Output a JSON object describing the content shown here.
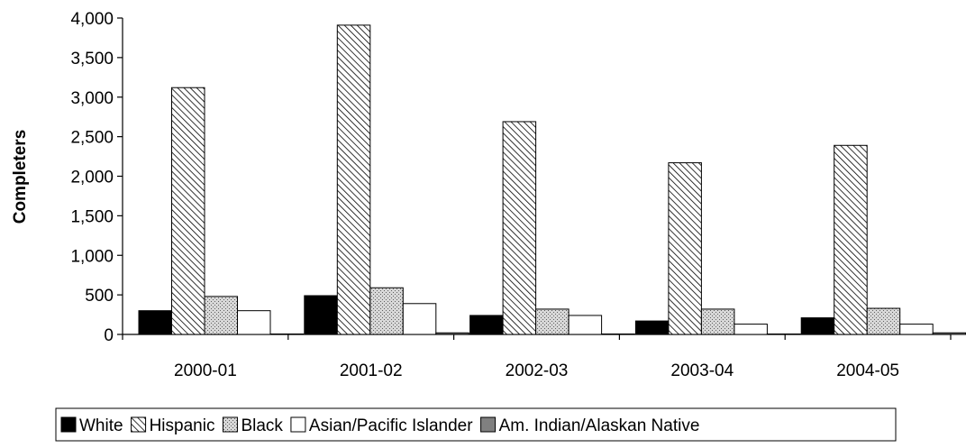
{
  "chart_data": {
    "type": "bar",
    "title": "",
    "xlabel": "",
    "ylabel": "Completers",
    "ylim": [
      0,
      4000
    ],
    "yticks": [
      0,
      500,
      1000,
      1500,
      2000,
      2500,
      3000,
      3500,
      4000
    ],
    "ytick_labels": [
      "0",
      "500",
      "1,000",
      "1,500",
      "2,000",
      "2,500",
      "3,000",
      "3,500",
      "4,000"
    ],
    "categories": [
      "2000-01",
      "2001-02",
      "2002-03",
      "2003-04",
      "2004-05"
    ],
    "grid": false,
    "legend_position": "bottom",
    "series": [
      {
        "name": "White",
        "pattern": "solid-black",
        "color": "#000000",
        "values": [
          300,
          490,
          240,
          170,
          210
        ]
      },
      {
        "name": "Hispanic",
        "pattern": "diagonal-hatch",
        "color": "#000000",
        "values": [
          3120,
          3910,
          2690,
          2170,
          2390
        ]
      },
      {
        "name": "Black",
        "pattern": "dotted-gray",
        "color": "#c0c0c0",
        "values": [
          480,
          590,
          320,
          320,
          330
        ]
      },
      {
        "name": "Asian/Pacific Islander",
        "pattern": "white",
        "color": "#ffffff",
        "values": [
          300,
          390,
          240,
          130,
          130
        ]
      },
      {
        "name": "Am. Indian/Alaskan Native",
        "pattern": "solid-gray",
        "color": "#808080",
        "values": [
          5,
          20,
          5,
          5,
          20
        ]
      }
    ]
  }
}
